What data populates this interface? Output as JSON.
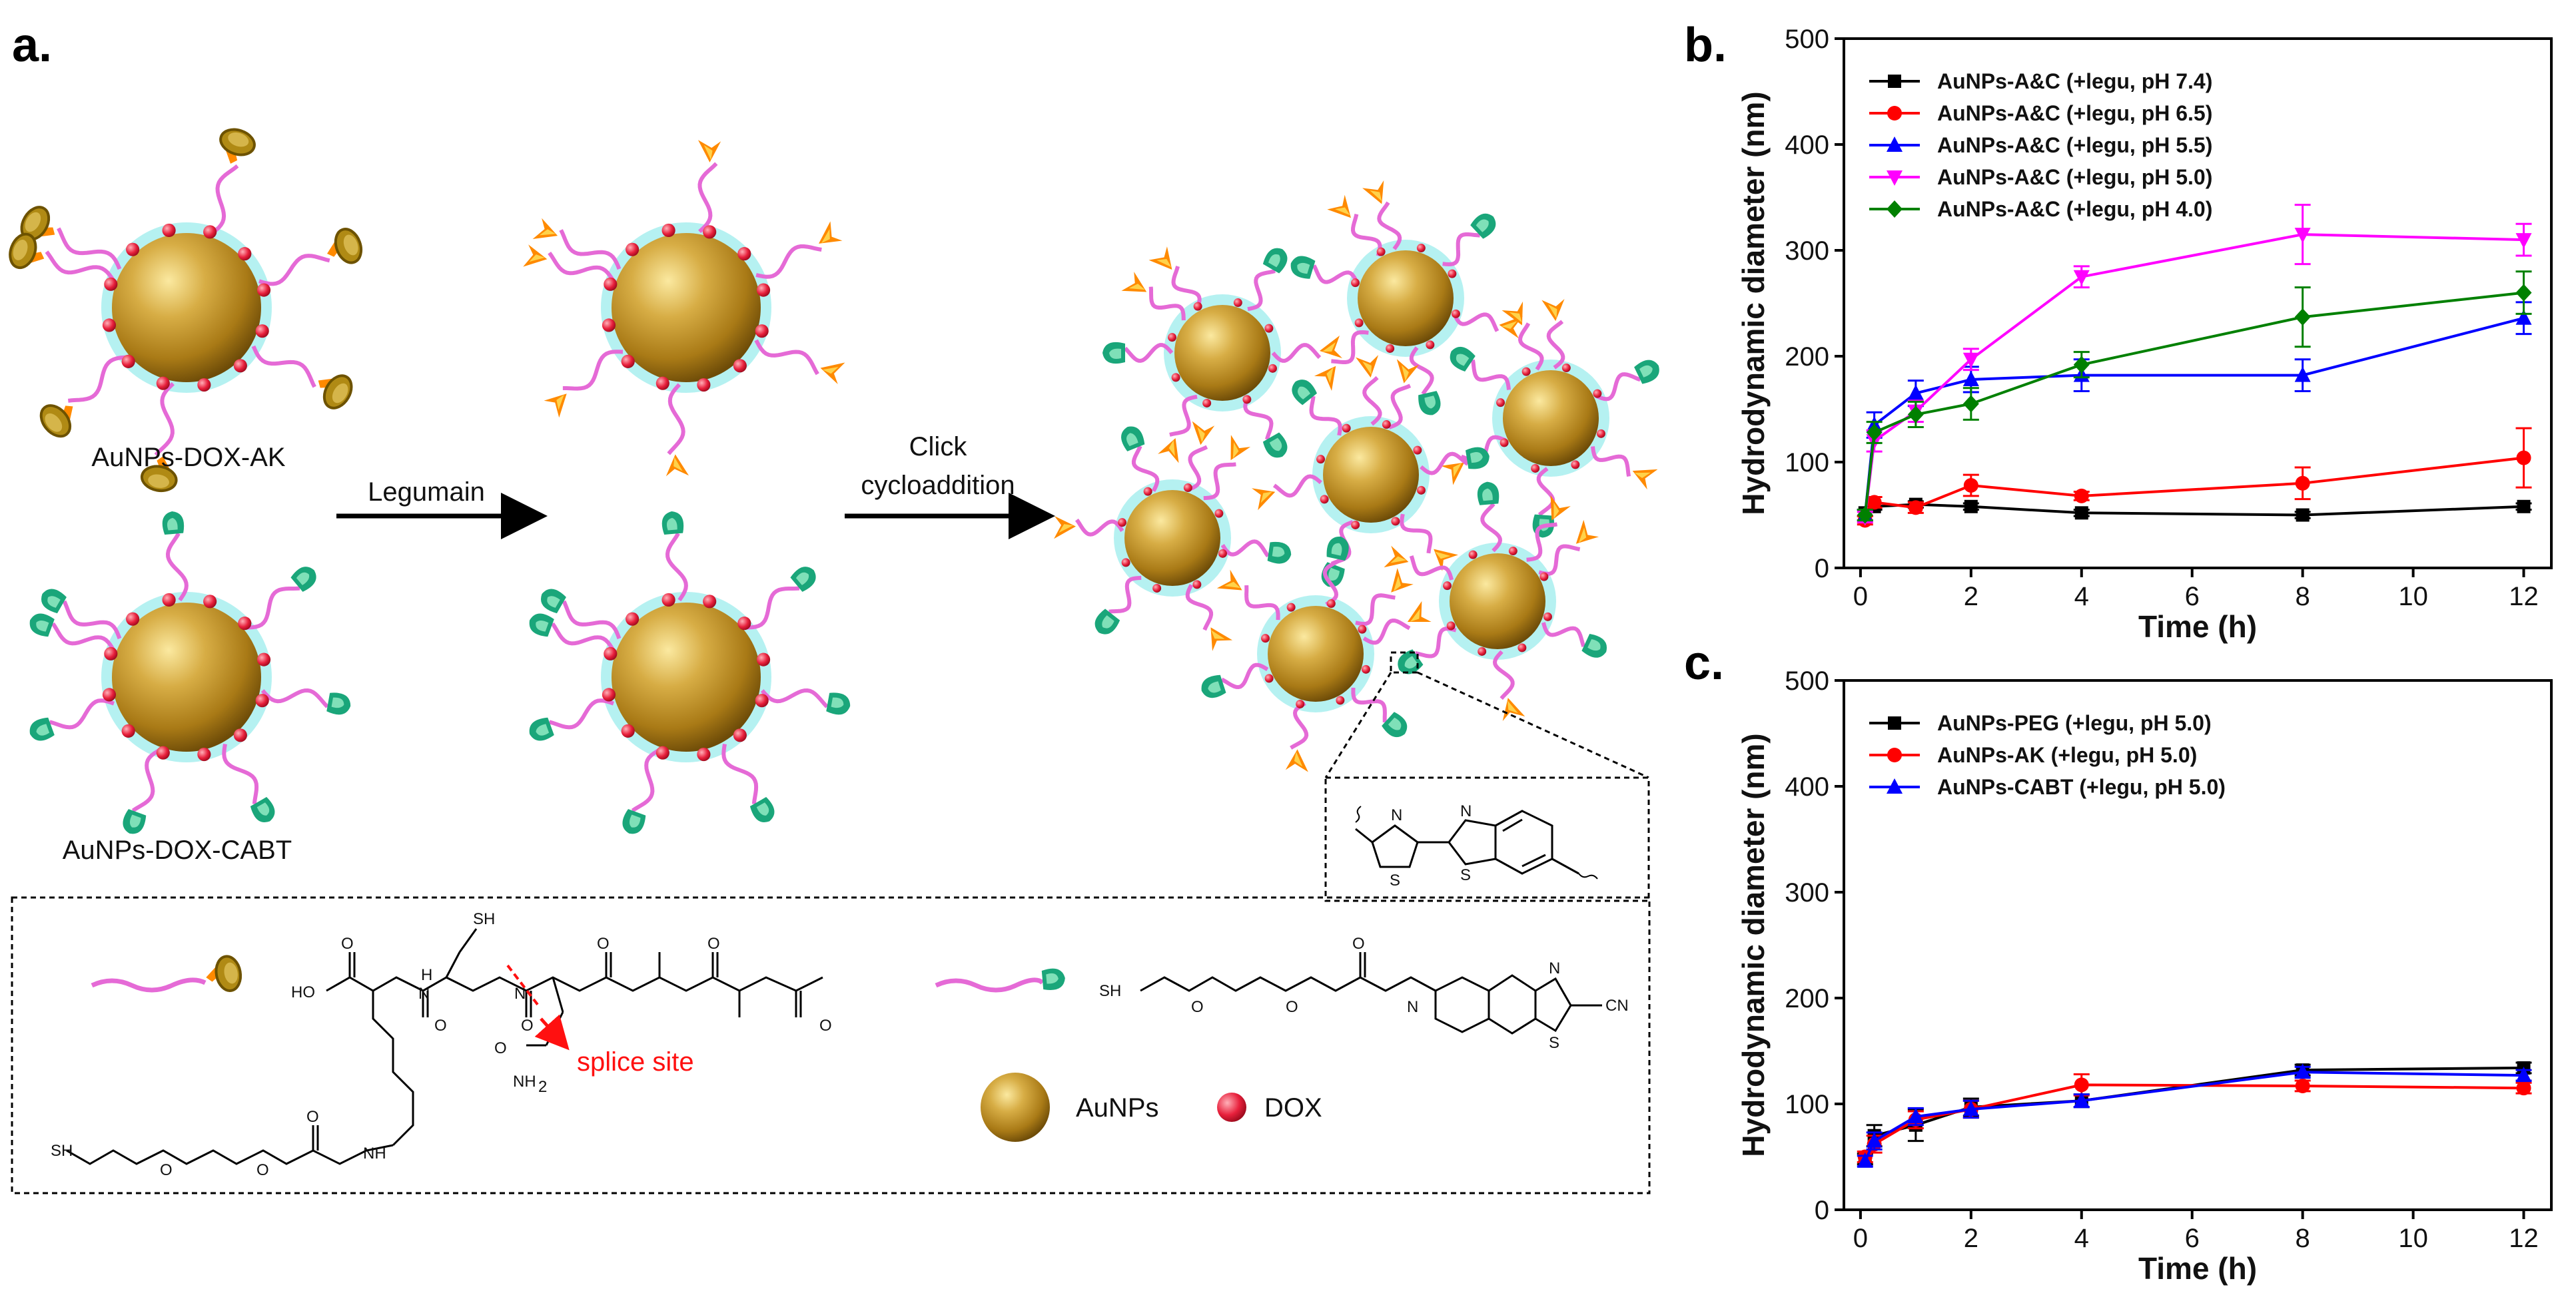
{
  "panel_labels": {
    "a": "a.",
    "b": "b.",
    "c": "c."
  },
  "scheme": {
    "particle_ak_label": "AuNPs-DOX-AK",
    "particle_cabt_label": "AuNPs-DOX-CABT",
    "step1_label": "Legumain",
    "step2_label_line1": "Click",
    "step2_label_line2": "cycloaddition",
    "splice_site_label": "splice site",
    "legend_aunps": "AuNPs",
    "legend_dox": "DOX",
    "chem_labels": {
      "sh": "SH",
      "ho": "HO",
      "o": "O",
      "h": "H",
      "n": "N",
      "s": "S",
      "nh": "NH",
      "nh2": "NH",
      "nh2_sub": "2",
      "cn": "CN",
      "shpeg": "SH"
    }
  },
  "colors": {
    "black": "#000000",
    "red": "#ff0000",
    "blue": "#0000ff",
    "magenta": "#ff00ff",
    "green": "#008000",
    "gold": "#c49a2c",
    "linker": "#e56ad6",
    "shell": "#a8eeee",
    "dox": "#e8203c",
    "cabt": "#1aa67a"
  },
  "chart_data": [
    {
      "id": "b",
      "type": "line",
      "title": "",
      "xlabel": "Time (h)",
      "ylabel": "Hydrodynamic diameter (nm)",
      "xlim": [
        -0.3,
        12.5
      ],
      "ylim": [
        0,
        500
      ],
      "xticks": [
        0,
        2,
        4,
        6,
        8,
        10,
        12
      ],
      "yticks": [
        0,
        100,
        200,
        300,
        400,
        500
      ],
      "x": [
        0.083,
        0.25,
        1,
        2,
        4,
        8,
        12
      ],
      "legend_position": "top-left",
      "series": [
        {
          "name": "AuNPs-A&C (+legu, pH 7.4)",
          "color": "#000000",
          "marker": "square",
          "values": [
            52,
            58,
            60,
            58,
            52,
            50,
            58
          ],
          "errors": [
            3,
            3,
            3,
            3,
            3,
            3,
            3
          ]
        },
        {
          "name": "AuNPs-A&C (+legu, pH 6.5)",
          "color": "#ff0000",
          "marker": "circle",
          "values": [
            45,
            62,
            57,
            78,
            68,
            80,
            104
          ],
          "errors": [
            4,
            5,
            5,
            10,
            4,
            15,
            28
          ]
        },
        {
          "name": "AuNPs-A&C (+legu, pH 5.5)",
          "color": "#0000ff",
          "marker": "triangle-up",
          "values": [
            50,
            135,
            165,
            178,
            182,
            182,
            236
          ],
          "errors": [
            5,
            12,
            12,
            12,
            15,
            15,
            15
          ]
        },
        {
          "name": "AuNPs-A&C (+legu, pH 5.0)",
          "color": "#ff00ff",
          "marker": "triangle-down",
          "values": [
            48,
            120,
            148,
            197,
            275,
            315,
            310
          ],
          "errors": [
            5,
            10,
            10,
            10,
            10,
            28,
            15
          ]
        },
        {
          "name": "AuNPs-A&C (+legu, pH 4.0)",
          "color": "#008000",
          "marker": "diamond",
          "values": [
            50,
            128,
            145,
            155,
            192,
            237,
            260
          ],
          "errors": [
            5,
            10,
            12,
            15,
            12,
            28,
            20
          ]
        }
      ]
    },
    {
      "id": "c",
      "type": "line",
      "title": "",
      "xlabel": "Time (h)",
      "ylabel": "Hydrodynamic diameter (nm)",
      "xlim": [
        -0.3,
        12.5
      ],
      "ylim": [
        0,
        500
      ],
      "xticks": [
        0,
        2,
        4,
        6,
        8,
        10,
        12
      ],
      "yticks": [
        0,
        100,
        200,
        300,
        400,
        500
      ],
      "x": [
        0.083,
        0.25,
        1,
        2,
        4,
        8,
        12
      ],
      "legend_position": "top-left",
      "series": [
        {
          "name": "AuNPs-PEG (+legu, pH 5.0)",
          "color": "#000000",
          "marker": "square",
          "values": [
            48,
            70,
            80,
            97,
            103,
            132,
            134
          ],
          "errors": [
            5,
            10,
            15,
            8,
            6,
            5,
            5
          ]
        },
        {
          "name": "AuNPs-AK (+legu, pH 5.0)",
          "color": "#ff0000",
          "marker": "circle",
          "values": [
            50,
            62,
            85,
            95,
            118,
            117,
            115
          ],
          "errors": [
            5,
            8,
            8,
            8,
            10,
            5,
            5
          ]
        },
        {
          "name": "AuNPs-CABT (+legu, pH 5.0)",
          "color": "#0000ff",
          "marker": "triangle-up",
          "values": [
            46,
            65,
            88,
            95,
            103,
            130,
            127
          ],
          "errors": [
            5,
            8,
            8,
            8,
            6,
            5,
            5
          ]
        }
      ]
    }
  ]
}
